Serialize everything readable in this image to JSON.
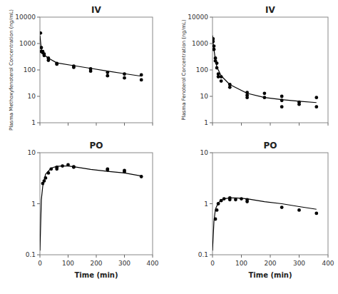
{
  "chart_data": [
    {
      "type": "scatter",
      "title": "IV",
      "y_label": "Plasma Methoxyfenoterol Concentration (ng/mL)",
      "xlim": [
        0,
        400
      ],
      "xticks": [
        0,
        100,
        200,
        300,
        400
      ],
      "ylim": [
        1,
        10000
      ],
      "yticks": [
        1,
        10,
        100,
        1000,
        10000
      ],
      "log": "y",
      "tick_labels": "y",
      "series": [
        {
          "type": "scatter",
          "color": "#000000",
          "x": [
            2,
            5,
            5,
            10,
            10,
            15,
            15,
            30,
            30,
            60,
            60,
            120,
            120,
            180,
            180,
            240,
            240,
            300,
            300,
            360,
            360
          ],
          "values": [
            2500,
            700,
            500,
            500,
            450,
            400,
            350,
            280,
            230,
            175,
            165,
            140,
            125,
            110,
            90,
            80,
            60,
            70,
            50,
            65,
            42
          ]
        },
        {
          "type": "line",
          "color": "#000000",
          "x": [
            0,
            5,
            15,
            30,
            60,
            120,
            180,
            240,
            300,
            360
          ],
          "values": [
            2000,
            600,
            370,
            280,
            185,
            145,
            115,
            90,
            72,
            58
          ]
        }
      ]
    },
    {
      "type": "scatter",
      "title": "IV",
      "y_label": "Plasma Fenoterol Concentration (ng/mL)",
      "xlim": [
        0,
        400
      ],
      "xticks": [
        0,
        100,
        200,
        300,
        400
      ],
      "ylim": [
        1,
        10000
      ],
      "yticks": [
        1,
        10,
        100,
        1000,
        10000
      ],
      "log": "y",
      "tick_labels": "y",
      "series": [
        {
          "type": "scatter",
          "color": "#000000",
          "x": [
            2,
            2,
            5,
            5,
            10,
            10,
            15,
            15,
            20,
            20,
            30,
            30,
            60,
            60,
            120,
            120,
            120,
            180,
            180,
            240,
            240,
            240,
            300,
            300,
            360,
            360
          ],
          "values": [
            1500,
            1200,
            800,
            600,
            280,
            220,
            180,
            120,
            70,
            55,
            55,
            38,
            28,
            22,
            14,
            11,
            9,
            13,
            9,
            10,
            7,
            4,
            6,
            5,
            9,
            4
          ]
        },
        {
          "type": "line",
          "color": "#000000",
          "x": [
            0,
            3,
            8,
            15,
            30,
            60,
            120,
            180,
            240,
            300,
            360
          ],
          "values": [
            2000,
            900,
            350,
            130,
            60,
            28,
            13,
            9,
            7.5,
            6.5,
            5.8
          ]
        }
      ]
    },
    {
      "type": "scatter",
      "title": "PO",
      "x_label": "Time (min)",
      "xlim": [
        0,
        400
      ],
      "xticks": [
        0,
        100,
        200,
        300,
        400
      ],
      "ylim": [
        0.1,
        10
      ],
      "yticks": [
        0.1,
        1,
        10
      ],
      "log": "y",
      "series": [
        {
          "type": "scatter",
          "color": "#000000",
          "x": [
            10,
            15,
            20,
            30,
            40,
            60,
            60,
            80,
            100,
            120,
            120,
            240,
            240,
            300,
            300,
            360
          ],
          "values": [
            2.5,
            2.8,
            3.2,
            4.0,
            4.8,
            5.2,
            4.8,
            5.5,
            5.8,
            5.2,
            5.3,
            4.8,
            4.6,
            4.2,
            4.5,
            3.4
          ]
        },
        {
          "type": "line",
          "color": "#000000",
          "x": [
            0,
            5,
            10,
            20,
            40,
            60,
            80,
            100,
            120,
            180,
            240,
            300,
            360
          ],
          "values": [
            0.12,
            1.2,
            2.2,
            3.8,
            5.0,
            5.4,
            5.5,
            5.5,
            5.3,
            4.7,
            4.3,
            4.0,
            3.5
          ]
        }
      ]
    },
    {
      "type": "scatter",
      "title": "PO",
      "x_label": "Time (min)",
      "xlim": [
        0,
        400
      ],
      "xticks": [
        0,
        100,
        200,
        300,
        400
      ],
      "ylim": [
        0.1,
        10
      ],
      "yticks": [
        0.1,
        1,
        10
      ],
      "log": "y",
      "series": [
        {
          "type": "scatter",
          "color": "#000000",
          "x": [
            10,
            15,
            20,
            30,
            40,
            60,
            60,
            80,
            100,
            120,
            120,
            240,
            300,
            360
          ],
          "values": [
            0.5,
            0.75,
            1.0,
            1.15,
            1.25,
            1.3,
            1.2,
            1.2,
            1.25,
            1.2,
            1.1,
            0.85,
            0.75,
            0.65
          ]
        },
        {
          "type": "line",
          "color": "#000000",
          "x": [
            0,
            5,
            10,
            20,
            40,
            60,
            80,
            100,
            120,
            180,
            240,
            300,
            360
          ],
          "values": [
            0.12,
            0.45,
            0.78,
            1.05,
            1.25,
            1.3,
            1.3,
            1.28,
            1.25,
            1.1,
            1.0,
            0.88,
            0.78
          ]
        }
      ]
    }
  ]
}
